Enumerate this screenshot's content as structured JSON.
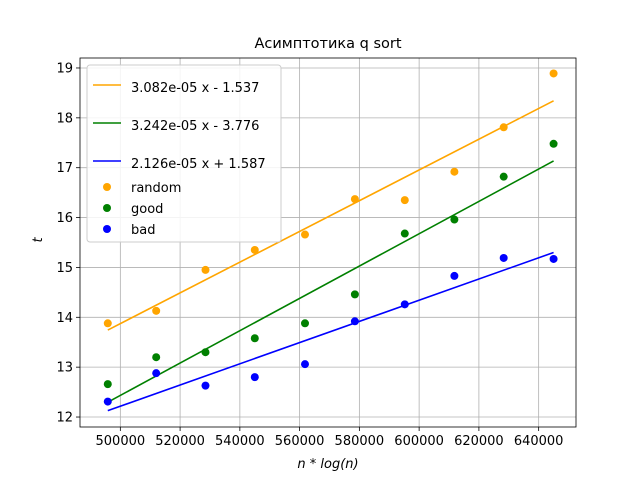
{
  "chart_data": {
    "type": "scatter",
    "title": "Асимптотика q sort",
    "xlabel": "n * log(n)",
    "ylabel": "t",
    "xlim": [
      486500,
      652500
    ],
    "ylim": [
      11.8,
      19.2
    ],
    "xticks": [
      500000,
      520000,
      540000,
      560000,
      580000,
      600000,
      620000,
      640000
    ],
    "yticks": [
      12,
      13,
      14,
      15,
      16,
      17,
      18,
      19
    ],
    "grid": true,
    "legend_position": "upper-left",
    "x": [
      495800,
      512000,
      528500,
      545000,
      561800,
      578500,
      595200,
      611800,
      628300,
      645000
    ],
    "series": [
      {
        "name": "random",
        "color": "#ffa500",
        "values": [
          13.88,
          14.13,
          14.95,
          15.35,
          15.66,
          16.37,
          16.35,
          16.92,
          17.81,
          18.89
        ]
      },
      {
        "name": "good",
        "color": "#008000",
        "values": [
          12.66,
          13.2,
          13.3,
          13.58,
          13.88,
          14.46,
          15.68,
          15.96,
          16.82,
          17.48
        ]
      },
      {
        "name": "bad",
        "color": "#0000ff",
        "values": [
          12.31,
          12.88,
          12.63,
          12.8,
          13.06,
          13.92,
          14.26,
          14.83,
          15.19,
          15.17
        ]
      }
    ],
    "fits": [
      {
        "label": "3.082e-05 x - 1.537",
        "slope": 3.082e-05,
        "intercept": -1.537,
        "color": "#ffa500"
      },
      {
        "label": "3.242e-05 x - 3.776",
        "slope": 3.242e-05,
        "intercept": -3.776,
        "color": "#008000"
      },
      {
        "label": "2.126e-05 x + 1.587",
        "slope": 2.126e-05,
        "intercept": 1.587,
        "color": "#0000ff"
      }
    ]
  }
}
